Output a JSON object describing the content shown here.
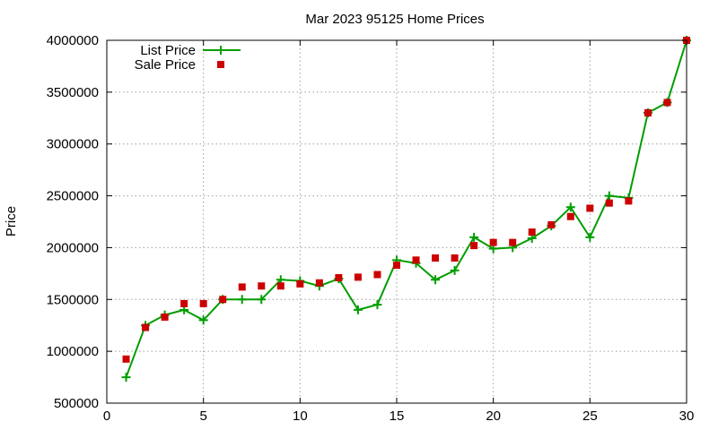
{
  "chart_data": {
    "type": "line",
    "title": "Mar 2023 95125 Home Prices",
    "xlabel": "",
    "ylabel": "Price",
    "xlim": [
      0,
      30
    ],
    "ylim": [
      500000,
      4000000
    ],
    "x_ticks": [
      0,
      5,
      10,
      15,
      20,
      25,
      30
    ],
    "y_ticks": [
      500000,
      1000000,
      1500000,
      2000000,
      2500000,
      3000000,
      3500000,
      4000000
    ],
    "grid": true,
    "legend_position": "top-left",
    "x": [
      1,
      2,
      3,
      4,
      5,
      6,
      7,
      8,
      9,
      10,
      11,
      12,
      13,
      14,
      15,
      16,
      17,
      18,
      19,
      20,
      21,
      22,
      23,
      24,
      25,
      26,
      27,
      28,
      29,
      30
    ],
    "series": [
      {
        "name": "List Price",
        "style": "line-points",
        "marker": "plus",
        "color": "#009e00",
        "values": [
          750000,
          1250000,
          1350000,
          1400000,
          1300000,
          1500000,
          1500000,
          1500000,
          1690000,
          1680000,
          1630000,
          1700000,
          1400000,
          1450000,
          1880000,
          1850000,
          1690000,
          1780000,
          2100000,
          1990000,
          2000000,
          2090000,
          2210000,
          2390000,
          2100000,
          2500000,
          2480000,
          3300000,
          3400000,
          4000000
        ]
      },
      {
        "name": "Sale Price",
        "style": "points",
        "marker": "square",
        "color": "#cc0000",
        "values": [
          925000,
          1230000,
          1330000,
          1460000,
          1460000,
          1500000,
          1620000,
          1630000,
          1630000,
          1650000,
          1660000,
          1710000,
          1715000,
          1740000,
          1830000,
          1880000,
          1900000,
          1900000,
          2020000,
          2050000,
          2050000,
          2150000,
          2220000,
          2300000,
          2380000,
          2430000,
          2450000,
          3300000,
          3400000,
          4000000
        ]
      }
    ]
  }
}
